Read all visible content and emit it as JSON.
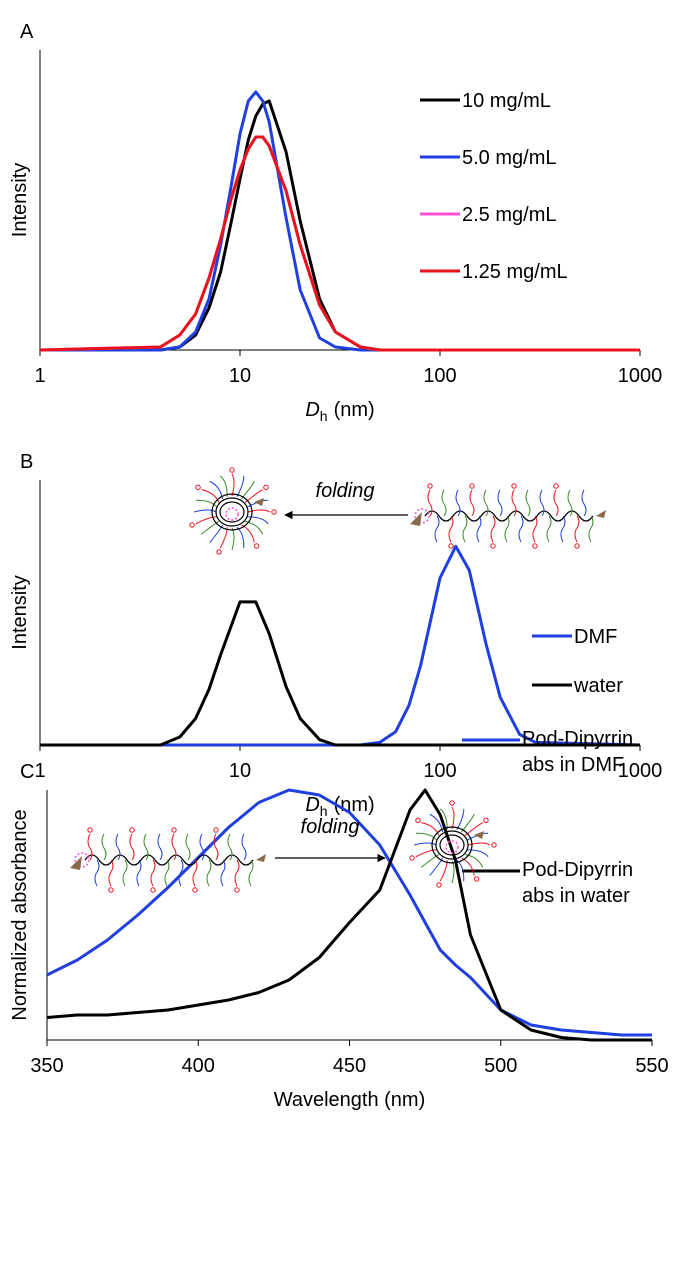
{
  "chart_data": [
    {
      "type": "line",
      "panel_label": "A",
      "y_label": "Intensity",
      "x_label": {
        "variable": "D",
        "subscript": "h",
        "unit": "(nm)"
      },
      "log_x": true,
      "xlim": [
        1,
        1000
      ],
      "xticks": [
        1,
        10,
        100,
        1000
      ],
      "ylim": [
        0,
        1
      ],
      "x": [
        1,
        4,
        5,
        6,
        7,
        8,
        9,
        10,
        11,
        12,
        13,
        14,
        17,
        20,
        25,
        30,
        40,
        50,
        100,
        1000
      ],
      "series": [
        {
          "name": "10 mg/mL",
          "color": "#000000",
          "values": [
            0,
            0,
            0.01,
            0.05,
            0.14,
            0.26,
            0.42,
            0.57,
            0.7,
            0.78,
            0.82,
            0.83,
            0.66,
            0.43,
            0.17,
            0.06,
            0.01,
            0,
            0,
            0
          ]
        },
        {
          "name": "5.0 mg/mL",
          "color": "#1f3fe0",
          "values": [
            0,
            0,
            0.01,
            0.06,
            0.17,
            0.35,
            0.54,
            0.72,
            0.83,
            0.86,
            0.83,
            0.76,
            0.44,
            0.2,
            0.04,
            0.01,
            0,
            0,
            0,
            0
          ]
        },
        {
          "name": "2.5 mg/mL",
          "color": "#ff4fd8",
          "values": [
            0,
            0.01,
            0.05,
            0.12,
            0.24,
            0.37,
            0.5,
            0.6,
            0.67,
            0.71,
            0.71,
            0.68,
            0.53,
            0.35,
            0.15,
            0.06,
            0.01,
            0,
            0,
            0
          ]
        },
        {
          "name": "1.25 mg/mL",
          "color": "#e8141c",
          "values": [
            0,
            0.01,
            0.05,
            0.12,
            0.24,
            0.37,
            0.5,
            0.6,
            0.67,
            0.71,
            0.71,
            0.68,
            0.53,
            0.35,
            0.15,
            0.06,
            0.01,
            0,
            0,
            0
          ]
        }
      ]
    },
    {
      "type": "line",
      "panel_label": "B",
      "y_label": "Intensity",
      "x_label": {
        "variable": "D",
        "subscript": "h",
        "unit": "(nm)"
      },
      "annotation": "folding",
      "log_x": true,
      "xlim": [
        1,
        1000
      ],
      "xticks": [
        1,
        10,
        100,
        1000
      ],
      "ylim": [
        0,
        1
      ],
      "x": [
        1,
        4,
        5,
        6,
        7,
        8,
        10,
        12,
        14,
        17,
        20,
        25,
        30,
        40,
        50,
        60,
        70,
        80,
        100,
        120,
        140,
        170,
        200,
        250,
        300,
        1000
      ],
      "series": [
        {
          "name": "DMF",
          "color": "#1f3fe0",
          "values": [
            0,
            0,
            0,
            0,
            0,
            0,
            0,
            0,
            0,
            0,
            0,
            0,
            0,
            0,
            0.01,
            0.05,
            0.15,
            0.3,
            0.63,
            0.75,
            0.66,
            0.38,
            0.18,
            0.04,
            0.01,
            0
          ]
        },
        {
          "name": "water",
          "color": "#000000",
          "values": [
            0,
            0,
            0.03,
            0.1,
            0.21,
            0.34,
            0.54,
            0.54,
            0.42,
            0.22,
            0.1,
            0.02,
            0,
            0,
            0,
            0,
            0,
            0,
            0,
            0,
            0,
            0,
            0,
            0,
            0,
            0
          ]
        }
      ]
    },
    {
      "type": "line",
      "panel_label": "C",
      "y_label": "Normalized absorbance",
      "x_label": "Wavelength (nm)",
      "annotation": "folding",
      "log_x": false,
      "xlim": [
        350,
        550
      ],
      "xticks": [
        350,
        400,
        450,
        500,
        550
      ],
      "ylim": [
        0,
        1
      ],
      "x": [
        350,
        360,
        370,
        380,
        390,
        400,
        410,
        420,
        430,
        440,
        450,
        460,
        470,
        475,
        480,
        485,
        490,
        500,
        510,
        520,
        530,
        540,
        550
      ],
      "series": [
        {
          "name": "Pod-Dipyrrin abs in DMF",
          "color": "#1f3fe0",
          "values": [
            0.26,
            0.32,
            0.4,
            0.5,
            0.61,
            0.73,
            0.85,
            0.95,
            1.0,
            0.98,
            0.91,
            0.78,
            0.58,
            0.47,
            0.36,
            0.3,
            0.25,
            0.12,
            0.06,
            0.04,
            0.03,
            0.02,
            0.02
          ]
        },
        {
          "name": "Pod-Dipyrrin abs in water",
          "color": "#000000",
          "values": [
            0.09,
            0.1,
            0.1,
            0.11,
            0.12,
            0.14,
            0.16,
            0.19,
            0.24,
            0.33,
            0.47,
            0.6,
            0.92,
            1.0,
            0.9,
            0.72,
            0.42,
            0.12,
            0.04,
            0.01,
            0,
            0,
            0
          ]
        }
      ]
    }
  ]
}
